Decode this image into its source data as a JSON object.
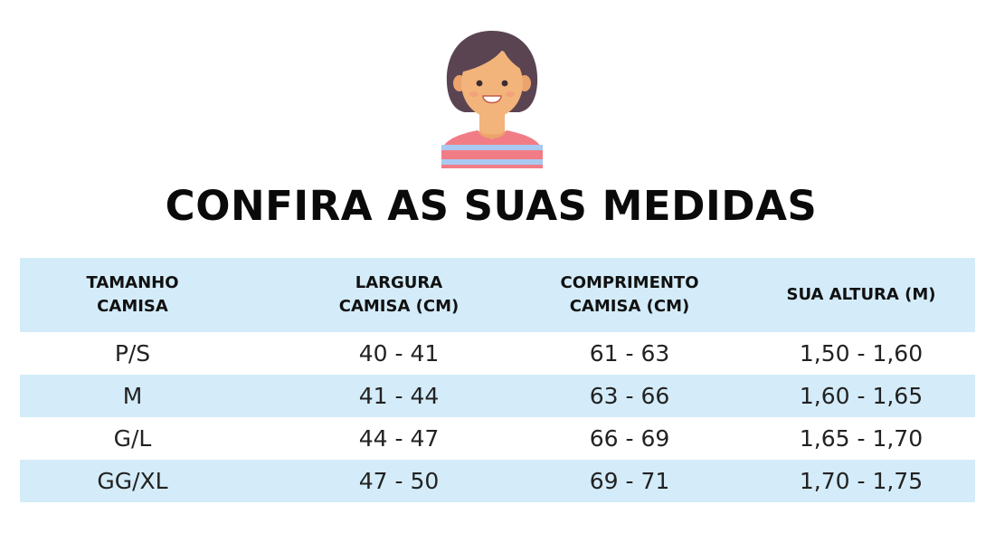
{
  "icon": "woman-avatar-icon",
  "colors": {
    "header_row_bg": "#d4ecf9",
    "striped_row_bg": "#d4ecf9",
    "title_color": "#0a0a0a"
  },
  "title": "CONFIRA AS SUAS MEDIDAS",
  "table": {
    "headers": [
      {
        "line1": "TAMANHO",
        "line2": "CAMISA"
      },
      {
        "line1": "LARGURA",
        "line2": "CAMISA (CM)"
      },
      {
        "line1": "COMPRIMENTO",
        "line2": "CAMISA (CM)"
      },
      {
        "line1": "SUA ALTURA (M)",
        "line2": ""
      }
    ],
    "rows": [
      [
        "P/S",
        "40 - 41",
        "61 - 63",
        "1,50 - 1,60"
      ],
      [
        "M",
        "41 - 44",
        "63 - 66",
        "1,60 - 1,65"
      ],
      [
        "G/L",
        "44 - 47",
        "66 - 69",
        "1,65 - 1,70"
      ],
      [
        "GG/XL",
        "47 - 50",
        "69 - 71",
        "1,70 - 1,75"
      ]
    ]
  }
}
